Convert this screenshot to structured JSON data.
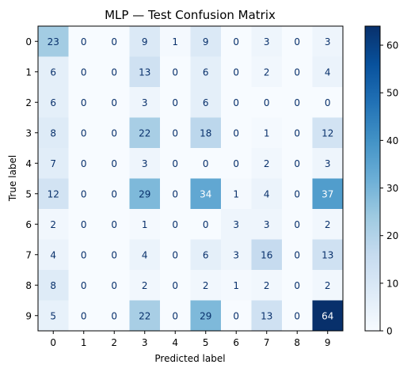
{
  "chart_data": {
    "type": "heatmap",
    "title": "MLP — Test Confusion Matrix",
    "xlabel": "Predicted label",
    "ylabel": "True label",
    "x_categories": [
      "0",
      "1",
      "2",
      "3",
      "4",
      "5",
      "6",
      "7",
      "8",
      "9"
    ],
    "y_categories": [
      "0",
      "1",
      "2",
      "3",
      "4",
      "5",
      "6",
      "7",
      "8",
      "9"
    ],
    "values": [
      [
        23,
        0,
        0,
        9,
        1,
        9,
        0,
        3,
        0,
        3
      ],
      [
        6,
        0,
        0,
        13,
        0,
        6,
        0,
        2,
        0,
        4
      ],
      [
        6,
        0,
        0,
        3,
        0,
        6,
        0,
        0,
        0,
        0
      ],
      [
        8,
        0,
        0,
        22,
        0,
        18,
        0,
        1,
        0,
        12
      ],
      [
        7,
        0,
        0,
        3,
        0,
        0,
        0,
        2,
        0,
        3
      ],
      [
        12,
        0,
        0,
        29,
        0,
        34,
        1,
        4,
        0,
        37
      ],
      [
        2,
        0,
        0,
        1,
        0,
        0,
        3,
        3,
        0,
        2
      ],
      [
        4,
        0,
        0,
        4,
        0,
        6,
        3,
        16,
        0,
        13
      ],
      [
        8,
        0,
        0,
        2,
        0,
        2,
        1,
        2,
        0,
        2
      ],
      [
        5,
        0,
        0,
        22,
        0,
        29,
        0,
        13,
        0,
        64
      ]
    ],
    "colormap": "Blues",
    "vmin": 0,
    "vmax": 64,
    "colorbar_ticks": [
      0,
      10,
      20,
      30,
      40,
      50,
      60
    ]
  }
}
